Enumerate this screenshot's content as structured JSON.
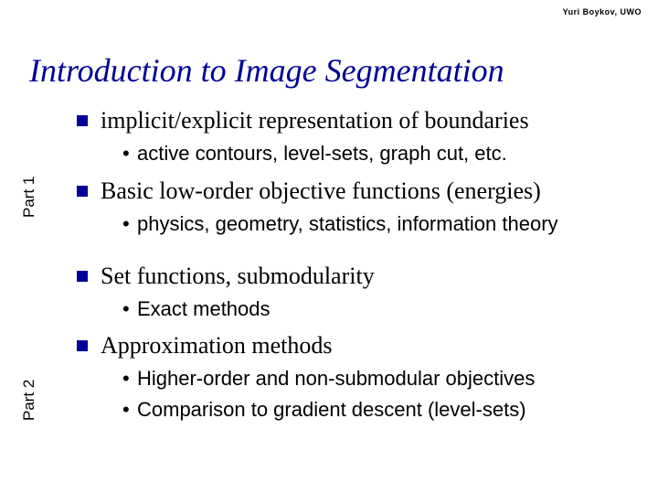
{
  "header": {
    "author": "Yuri Boykov, UWO"
  },
  "title": {
    "text": "Introduction to Image Segmentation",
    "color": "#000099",
    "fontsize": 36,
    "italic": true
  },
  "parts": {
    "part1_label": "Part 1",
    "part2_label": "Part 2"
  },
  "bullets": {
    "b1": {
      "text": "implicit/explicit representation of boundaries"
    },
    "b1_sub1": {
      "text": "active contours, level-sets, graph cut, etc."
    },
    "b2": {
      "text": "Basic low-order objective functions (energies)"
    },
    "b2_sub1": {
      "text": "physics, geometry, statistics, information theory"
    },
    "b3": {
      "text": "Set functions, submodularity"
    },
    "b3_sub1": {
      "text": "Exact methods"
    },
    "b4": {
      "text": "Approximation methods"
    },
    "b4_sub1": {
      "text": "Higher-order and non-submodular objectives"
    },
    "b4_sub2": {
      "text": "Comparison to gradient descent (level-sets)"
    }
  },
  "style": {
    "square_bullet_color": "#000099",
    "title_color": "#000099",
    "body_fontsize_top": 26,
    "body_fontsize_sub": 22,
    "font_top": "Times New Roman",
    "font_sub": "Arial",
    "background_color": "#ffffff",
    "text_color": "#000000"
  }
}
